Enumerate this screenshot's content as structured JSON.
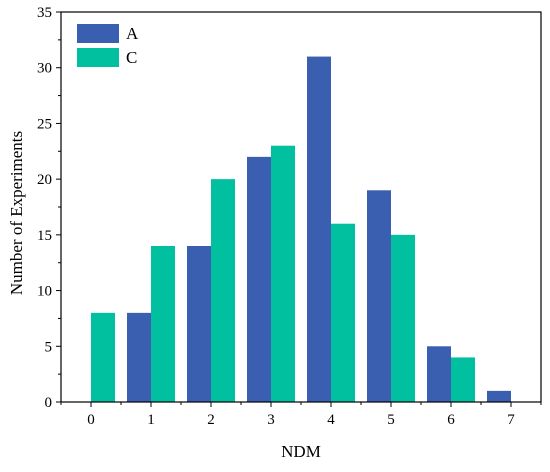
{
  "chart_data": {
    "type": "bar",
    "title": "",
    "xlabel": "NDM",
    "ylabel": "Number of Experiments",
    "x": [
      0,
      1,
      2,
      3,
      4,
      5,
      6,
      7
    ],
    "xticks": [
      "0",
      "1",
      "2",
      "3",
      "4",
      "5",
      "6",
      "7"
    ],
    "xlim": [
      -0.5,
      7.5
    ],
    "ylim": [
      0,
      35
    ],
    "yticks": [
      0,
      5,
      10,
      15,
      20,
      25,
      30,
      35
    ],
    "grid": false,
    "legend_position": "top-left",
    "series": [
      {
        "name": "A",
        "color": "#3A5FB0",
        "points": [
          {
            "x": 1,
            "y": 8
          },
          {
            "x": 2,
            "y": 14
          },
          {
            "x": 3,
            "y": 22
          },
          {
            "x": 4,
            "y": 31
          },
          {
            "x": 5,
            "y": 19
          },
          {
            "x": 6,
            "y": 5
          },
          {
            "x": 7,
            "y": 1
          }
        ]
      },
      {
        "name": "C",
        "color": "#00C0A0",
        "points": [
          {
            "x": 0,
            "y": 8
          },
          {
            "x": 1,
            "y": 14
          },
          {
            "x": 2,
            "y": 20
          },
          {
            "x": 3,
            "y": 23
          },
          {
            "x": 4,
            "y": 16
          },
          {
            "x": 5,
            "y": 15
          },
          {
            "x": 6,
            "y": 4
          }
        ]
      }
    ]
  }
}
